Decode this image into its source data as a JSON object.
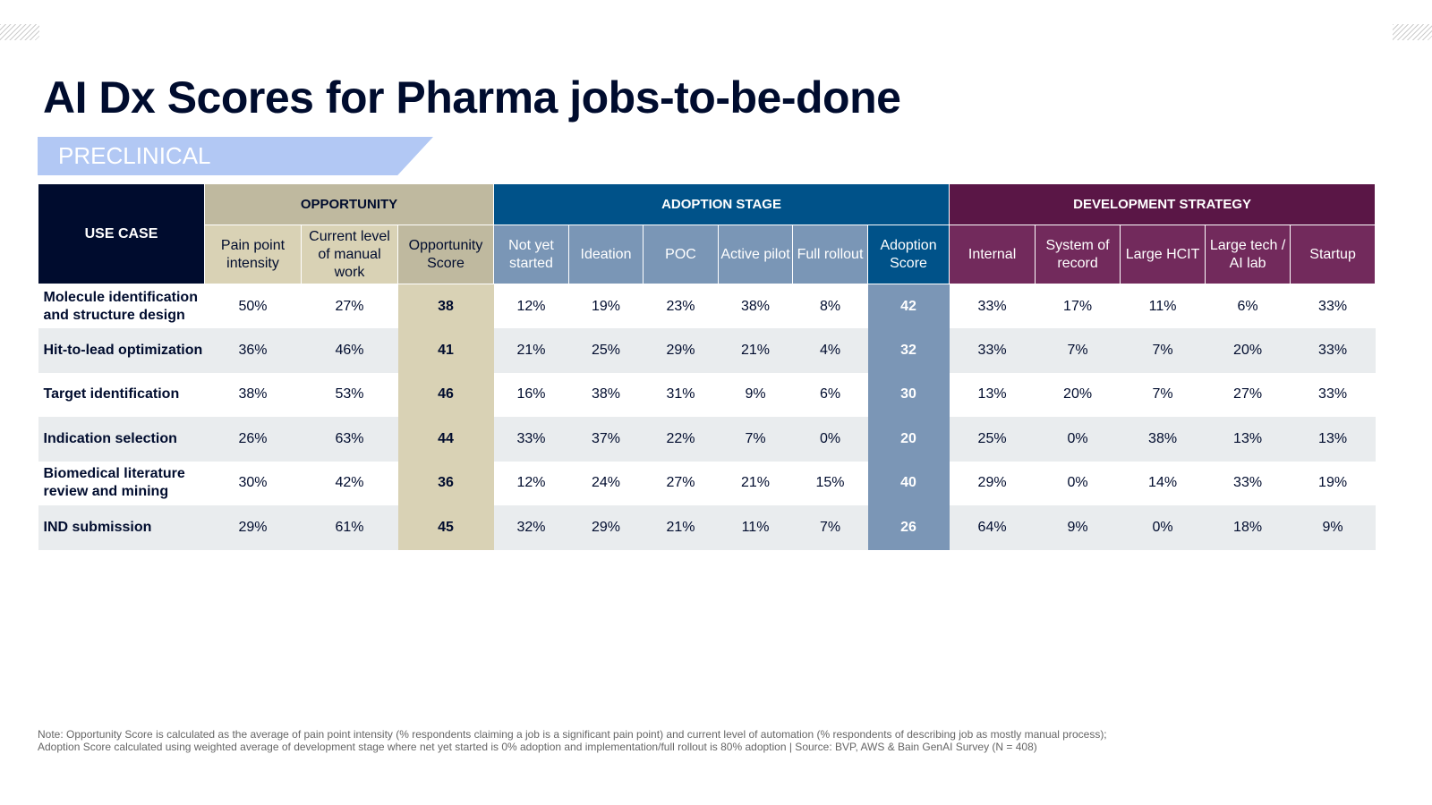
{
  "title": "AI Dx Scores for Pharma jobs-to-be-done",
  "section": "PRECLINICAL",
  "groups": {
    "use_case": "USE CASE",
    "opportunity": "OPPORTUNITY",
    "adoption": "ADOPTION STAGE",
    "development": "DEVELOPMENT STRATEGY"
  },
  "columns": [
    "Pain point intensity",
    "Current level of manual work",
    "Opportunity Score",
    "Not yet started",
    "Ideation",
    "POC",
    "Active pilot",
    "Full rollout",
    "Adoption Score",
    "Internal",
    "System of record",
    "Large HCIT",
    "Large tech / AI lab",
    "Startup"
  ],
  "rows": [
    {
      "name": "Molecule identification and structure design",
      "values": [
        "50%",
        "27%",
        "38",
        "12%",
        "19%",
        "23%",
        "38%",
        "8%",
        "42",
        "33%",
        "17%",
        "11%",
        "6%",
        "33%"
      ]
    },
    {
      "name": "Hit-to-lead optimization",
      "values": [
        "36%",
        "46%",
        "41",
        "21%",
        "25%",
        "29%",
        "21%",
        "4%",
        "32",
        "33%",
        "7%",
        "7%",
        "20%",
        "33%"
      ]
    },
    {
      "name": "Target identification",
      "values": [
        "38%",
        "53%",
        "46",
        "16%",
        "38%",
        "31%",
        "9%",
        "6%",
        "30",
        "13%",
        "20%",
        "7%",
        "27%",
        "33%"
      ]
    },
    {
      "name": "Indication selection",
      "values": [
        "26%",
        "63%",
        "44",
        "33%",
        "37%",
        "22%",
        "7%",
        "0%",
        "20",
        "25%",
        "0%",
        "38%",
        "13%",
        "13%"
      ]
    },
    {
      "name": "Biomedical literature review and mining",
      "values": [
        "30%",
        "42%",
        "36",
        "12%",
        "24%",
        "27%",
        "21%",
        "15%",
        "40",
        "29%",
        "0%",
        "14%",
        "33%",
        "19%"
      ]
    },
    {
      "name": "IND submission",
      "values": [
        "29%",
        "61%",
        "45",
        "32%",
        "29%",
        "21%",
        "11%",
        "7%",
        "26",
        "64%",
        "9%",
        "0%",
        "18%",
        "9%"
      ]
    }
  ],
  "note_line1": "Note: Opportunity Score is calculated as the average of pain point intensity (% respondents claiming a job is a significant pain point) and current level of automation (% respondents of describing job as mostly manual process);",
  "note_line2": "Adoption Score calculated using weighted average of development stage where net yet started is 0% adoption and implementation/full rollout is 80% adoption | Source: BVP, AWS & Bain GenAI Survey (N = 408)",
  "colors": {
    "navy": "#000c2e",
    "opportunity": "#bfb99f",
    "adoption": "#005289",
    "development": "#5a1646",
    "section": "#b2c8f4"
  }
}
